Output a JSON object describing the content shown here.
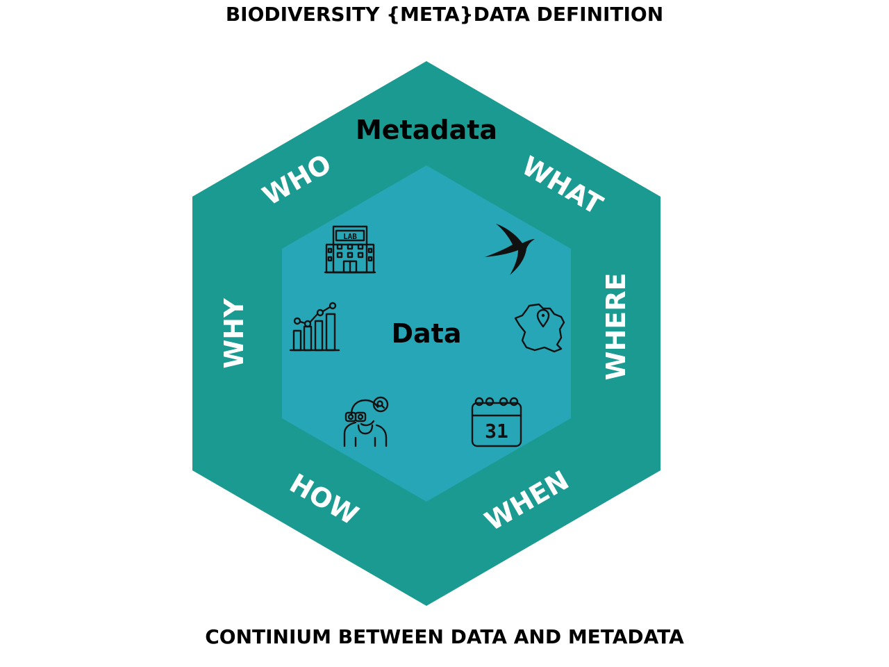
{
  "title": "BIODIVERSITY {META}DATA DEFINITION",
  "subtitle": "CONTINIUM BETWEEN DATA AND METADATA",
  "outer_label": "Metadata",
  "inner_label": "Data",
  "facets": {
    "who": "WHO",
    "what": "WHAT",
    "where": "WHERE",
    "when": "WHEN",
    "how": "HOW",
    "why": "WHY"
  },
  "icons": {
    "lab_sign": "LAB",
    "calendar_day": "31"
  },
  "colors": {
    "outer_hexagon": "#1a9a90",
    "inner_hexagon": "#26a6b6",
    "facet_text": "#ffffff",
    "label_text": "#000000"
  }
}
